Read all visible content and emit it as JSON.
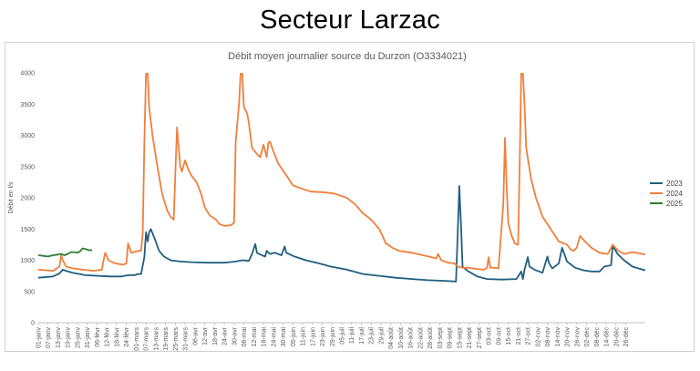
{
  "page": {
    "heading": "Secteur Larzac"
  },
  "chart_data": {
    "type": "line",
    "title": "Débit moyen journalier source du Durzon (O3334021)",
    "xlabel": "",
    "ylabel": "Débit en l/s",
    "ylim": [
      0,
      4000
    ],
    "yticks": [
      0,
      500,
      1000,
      1500,
      2000,
      2500,
      3000,
      3500,
      4000
    ],
    "grid": false,
    "legend": "right",
    "x_unit": "day of year (1 = 01-janv)",
    "x_tick_days": [
      1,
      7,
      13,
      19,
      25,
      31,
      37,
      43,
      49,
      55,
      61,
      67,
      73,
      79,
      85,
      91,
      97,
      103,
      109,
      115,
      121,
      127,
      133,
      139,
      145,
      151,
      157,
      163,
      169,
      175,
      181,
      187,
      193,
      199,
      205,
      211,
      217,
      223,
      229,
      235,
      241,
      247,
      253,
      259,
      265,
      271,
      277,
      283,
      289,
      295,
      301,
      307,
      313,
      319,
      325,
      331,
      337,
      343,
      349,
      355,
      361
    ],
    "x_tick_labels": [
      "01-janv",
      "07-janv",
      "13-janv",
      "19-janv",
      "25-janv",
      "31-janv",
      "06-févr",
      "12-févr",
      "18-févr",
      "24-févr",
      "01-mars",
      "07-mars",
      "13-mars",
      "19-mars",
      "25-mars",
      "31-mars",
      "06-avr",
      "12-avr",
      "18-avr",
      "24-avr",
      "30-avr",
      "06-mai",
      "12-mai",
      "18-mai",
      "24-mai",
      "30-mai",
      "05-juin",
      "11-juin",
      "17-juin",
      "23-juin",
      "29-juin",
      "05-juil",
      "11-juil",
      "17-juil",
      "23-juil",
      "29-juil",
      "04-août",
      "10-août",
      "16-août",
      "22-août",
      "28-août",
      "03-sept",
      "09-sept",
      "15-sept",
      "21-sept",
      "27-sept",
      "03-oct",
      "09-oct",
      "15-oct",
      "21-oct",
      "27-oct",
      "02-nov",
      "08-nov",
      "14-nov",
      "20-nov",
      "26-nov",
      "02-déc",
      "08-déc",
      "14-déc",
      "20-déc",
      "26-déc"
    ],
    "series": [
      {
        "name": "2023",
        "color": "#1f5f7f",
        "points": [
          [
            1,
            720
          ],
          [
            10,
            740
          ],
          [
            14,
            790
          ],
          [
            16,
            850
          ],
          [
            18,
            830
          ],
          [
            22,
            800
          ],
          [
            30,
            760
          ],
          [
            45,
            740
          ],
          [
            52,
            740
          ],
          [
            56,
            760
          ],
          [
            60,
            760
          ],
          [
            62,
            780
          ],
          [
            64,
            780
          ],
          [
            66,
            1050
          ],
          [
            67,
            1450
          ],
          [
            68,
            1300
          ],
          [
            69,
            1450
          ],
          [
            70,
            1500
          ],
          [
            73,
            1300
          ],
          [
            75,
            1150
          ],
          [
            78,
            1060
          ],
          [
            82,
            1000
          ],
          [
            88,
            980
          ],
          [
            95,
            970
          ],
          [
            105,
            960
          ],
          [
            115,
            960
          ],
          [
            122,
            980
          ],
          [
            126,
            1000
          ],
          [
            130,
            990
          ],
          [
            132,
            1100
          ],
          [
            134,
            1260
          ],
          [
            135,
            1120
          ],
          [
            138,
            1080
          ],
          [
            140,
            1060
          ],
          [
            141,
            1150
          ],
          [
            143,
            1100
          ],
          [
            146,
            1120
          ],
          [
            150,
            1080
          ],
          [
            152,
            1220
          ],
          [
            153,
            1120
          ],
          [
            158,
            1060
          ],
          [
            165,
            1000
          ],
          [
            173,
            950
          ],
          [
            180,
            900
          ],
          [
            190,
            850
          ],
          [
            200,
            780
          ],
          [
            210,
            750
          ],
          [
            220,
            720
          ],
          [
            230,
            700
          ],
          [
            240,
            680
          ],
          [
            250,
            670
          ],
          [
            257,
            660
          ],
          [
            258,
            1400
          ],
          [
            259,
            2190
          ],
          [
            260,
            1600
          ],
          [
            261,
            900
          ],
          [
            264,
            830
          ],
          [
            270,
            740
          ],
          [
            276,
            700
          ],
          [
            285,
            690
          ],
          [
            294,
            700
          ],
          [
            297,
            820
          ],
          [
            298,
            700
          ],
          [
            299,
            850
          ],
          [
            301,
            1050
          ],
          [
            302,
            900
          ],
          [
            305,
            850
          ],
          [
            310,
            800
          ],
          [
            313,
            1060
          ],
          [
            314,
            950
          ],
          [
            316,
            870
          ],
          [
            320,
            950
          ],
          [
            322,
            1200
          ],
          [
            325,
            980
          ],
          [
            330,
            880
          ],
          [
            335,
            840
          ],
          [
            340,
            820
          ],
          [
            345,
            820
          ],
          [
            348,
            900
          ],
          [
            352,
            920
          ],
          [
            353,
            1230
          ],
          [
            356,
            1100
          ],
          [
            360,
            1000
          ],
          [
            365,
            900
          ],
          [
            370,
            860
          ],
          [
            373,
            840
          ]
        ]
      },
      {
        "name": "2024",
        "color": "#f07f3c",
        "points": [
          [
            1,
            850
          ],
          [
            10,
            830
          ],
          [
            14,
            900
          ],
          [
            15,
            1080
          ],
          [
            16,
            1000
          ],
          [
            18,
            900
          ],
          [
            22,
            870
          ],
          [
            28,
            850
          ],
          [
            35,
            830
          ],
          [
            40,
            850
          ],
          [
            41,
            1000
          ],
          [
            42,
            1120
          ],
          [
            44,
            1000
          ],
          [
            48,
            950
          ],
          [
            53,
            930
          ],
          [
            55,
            950
          ],
          [
            56,
            1270
          ],
          [
            58,
            1120
          ],
          [
            62,
            1150
          ],
          [
            64,
            1150
          ],
          [
            65,
            1430
          ],
          [
            66,
            2900
          ],
          [
            67,
            4000
          ],
          [
            68,
            4000
          ],
          [
            69,
            3450
          ],
          [
            71,
            3000
          ],
          [
            74,
            2500
          ],
          [
            77,
            2050
          ],
          [
            80,
            1800
          ],
          [
            82,
            1700
          ],
          [
            84,
            1650
          ],
          [
            85,
            2400
          ],
          [
            86,
            3130
          ],
          [
            87,
            2800
          ],
          [
            88,
            2500
          ],
          [
            89,
            2420
          ],
          [
            91,
            2600
          ],
          [
            93,
            2450
          ],
          [
            95,
            2350
          ],
          [
            98,
            2250
          ],
          [
            101,
            2050
          ],
          [
            103,
            1850
          ],
          [
            106,
            1720
          ],
          [
            110,
            1650
          ],
          [
            112,
            1580
          ],
          [
            115,
            1550
          ],
          [
            119,
            1560
          ],
          [
            121,
            1600
          ],
          [
            122,
            2900
          ],
          [
            124,
            3500
          ],
          [
            125,
            4000
          ],
          [
            126,
            4000
          ],
          [
            127,
            3450
          ],
          [
            129,
            3350
          ],
          [
            130,
            3200
          ],
          [
            132,
            2800
          ],
          [
            135,
            2700
          ],
          [
            137,
            2650
          ],
          [
            139,
            2850
          ],
          [
            141,
            2650
          ],
          [
            142,
            2880
          ],
          [
            143,
            2900
          ],
          [
            145,
            2750
          ],
          [
            148,
            2550
          ],
          [
            152,
            2400
          ],
          [
            157,
            2200
          ],
          [
            162,
            2150
          ],
          [
            168,
            2100
          ],
          [
            175,
            2090
          ],
          [
            182,
            2070
          ],
          [
            190,
            2000
          ],
          [
            195,
            1900
          ],
          [
            200,
            1750
          ],
          [
            205,
            1650
          ],
          [
            210,
            1500
          ],
          [
            214,
            1270
          ],
          [
            218,
            1200
          ],
          [
            222,
            1150
          ],
          [
            230,
            1120
          ],
          [
            240,
            1060
          ],
          [
            245,
            1030
          ],
          [
            246,
            1100
          ],
          [
            248,
            1000
          ],
          [
            252,
            960
          ],
          [
            256,
            950
          ],
          [
            258,
            900
          ],
          [
            261,
            880
          ],
          [
            264,
            880
          ],
          [
            270,
            860
          ],
          [
            274,
            850
          ],
          [
            276,
            880
          ],
          [
            277,
            1050
          ],
          [
            278,
            880
          ],
          [
            280,
            880
          ],
          [
            283,
            870
          ],
          [
            286,
            1900
          ],
          [
            287,
            2960
          ],
          [
            288,
            2200
          ],
          [
            289,
            1600
          ],
          [
            291,
            1400
          ],
          [
            293,
            1270
          ],
          [
            295,
            1250
          ],
          [
            296,
            2500
          ],
          [
            297,
            4000
          ],
          [
            298,
            4000
          ],
          [
            299,
            3500
          ],
          [
            300,
            2800
          ],
          [
            303,
            2300
          ],
          [
            306,
            2000
          ],
          [
            310,
            1700
          ],
          [
            315,
            1500
          ],
          [
            320,
            1300
          ],
          [
            325,
            1250
          ],
          [
            327,
            1180
          ],
          [
            329,
            1150
          ],
          [
            331,
            1200
          ],
          [
            333,
            1390
          ],
          [
            336,
            1300
          ],
          [
            340,
            1200
          ],
          [
            345,
            1120
          ],
          [
            350,
            1100
          ],
          [
            353,
            1250
          ],
          [
            356,
            1160
          ],
          [
            360,
            1100
          ],
          [
            365,
            1130
          ],
          [
            370,
            1110
          ],
          [
            373,
            1090
          ]
        ]
      },
      {
        "name": "2025",
        "color": "#2e7d32",
        "points": [
          [
            1,
            1080
          ],
          [
            4,
            1070
          ],
          [
            7,
            1060
          ],
          [
            10,
            1080
          ],
          [
            13,
            1090
          ],
          [
            15,
            1100
          ],
          [
            17,
            1080
          ],
          [
            19,
            1100
          ],
          [
            21,
            1130
          ],
          [
            23,
            1130
          ],
          [
            25,
            1120
          ],
          [
            27,
            1150
          ],
          [
            28,
            1190
          ],
          [
            30,
            1180
          ],
          [
            32,
            1160
          ],
          [
            34,
            1160
          ]
        ]
      }
    ]
  }
}
